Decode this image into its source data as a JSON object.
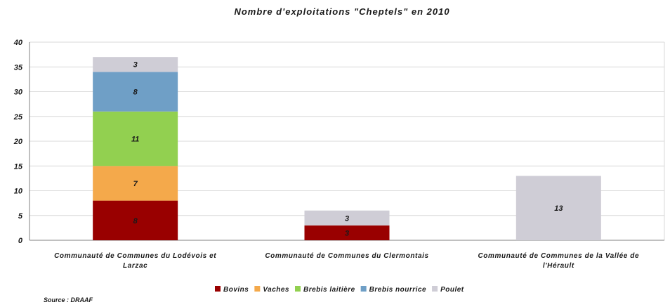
{
  "chart_data": {
    "type": "bar",
    "stacked": true,
    "title": "Nombre d'exploitations \"Cheptels\" en 2010",
    "categories": [
      [
        "Communauté de Communes du Lodévois et",
        "Larzac"
      ],
      [
        "Communauté de Communes du Clermontais"
      ],
      [
        "Communauté de Communes de la Vallée de",
        "l'Hérault"
      ]
    ],
    "series": [
      {
        "name": "Bovins",
        "color": "#990000",
        "values": [
          8,
          3,
          0
        ]
      },
      {
        "name": "Vaches",
        "color": "#f4a94b",
        "values": [
          7,
          0,
          0
        ]
      },
      {
        "name": "Brebis laitière",
        "color": "#92d050",
        "values": [
          11,
          0,
          0
        ]
      },
      {
        "name": "Brebis nourrice",
        "color": "#6f9fc6",
        "values": [
          8,
          0,
          0
        ]
      },
      {
        "name": "Poulet",
        "color": "#cfcdd6",
        "values": [
          3,
          3,
          13
        ]
      }
    ],
    "ylim": [
      0,
      40
    ],
    "yticks": [
      0,
      5,
      10,
      15,
      20,
      25,
      30,
      35,
      40
    ],
    "grid": true,
    "legend": "bottom",
    "xlabel": "",
    "ylabel": ""
  },
  "source": "Source : DRAAF"
}
